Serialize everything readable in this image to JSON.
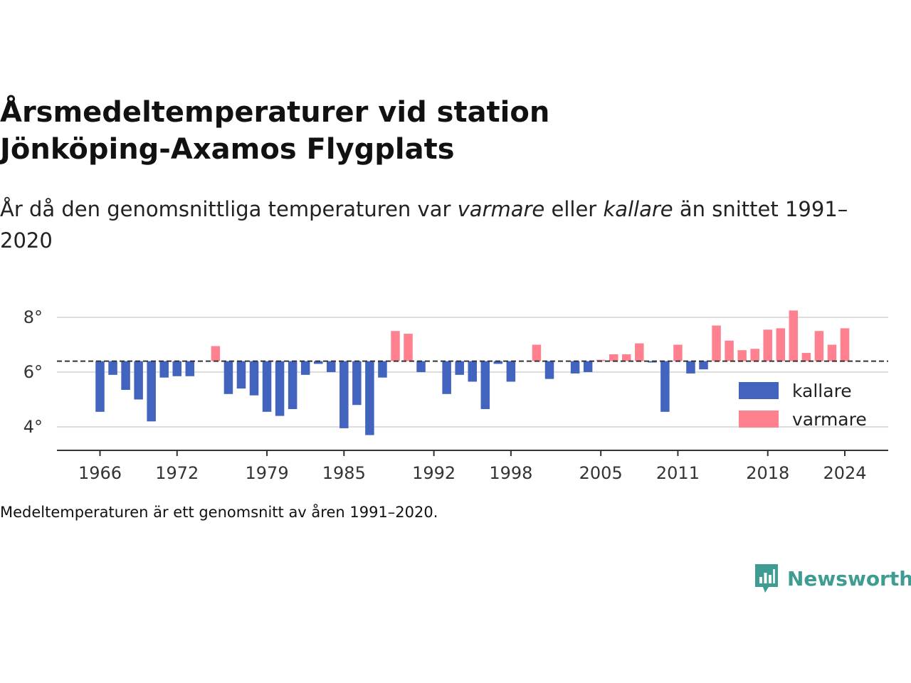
{
  "header": {
    "title_line1": "Årsmedeltemperaturer vid station",
    "title_line2": "Jönköping-Axamos Flygplats",
    "subtitle_pre": "År då den genomsnittliga temperaturen var ",
    "subtitle_warm": "varmare",
    "subtitle_mid": " eller ",
    "subtitle_cold": "kallare",
    "subtitle_post": " än snittet 1991–2020"
  },
  "footnote": "Medeltemperaturen är ett genomsnitt av åren 1991–2020.",
  "brand": {
    "name": "Newsworthy",
    "color": "#3e9c93"
  },
  "colors": {
    "cold": "#4264be",
    "warm": "#ff808f",
    "grid": "#dddddd",
    "axis": "#333333"
  },
  "chart_data": {
    "type": "bar",
    "baseline": 6.4,
    "ylim": [
      3.2,
      8.5
    ],
    "yticks": [
      {
        "value": 4,
        "label": "4°"
      },
      {
        "value": 6,
        "label": "6°"
      },
      {
        "value": 8,
        "label": "8°"
      }
    ],
    "xlim": [
      1965,
      2027
    ],
    "xticks": [
      {
        "value": 1966,
        "label": "1966"
      },
      {
        "value": 1972,
        "label": "1972"
      },
      {
        "value": 1979,
        "label": "1979"
      },
      {
        "value": 1985,
        "label": "1985"
      },
      {
        "value": 1992,
        "label": "1992"
      },
      {
        "value": 1998,
        "label": "1998"
      },
      {
        "value": 2005,
        "label": "2005"
      },
      {
        "value": 2011,
        "label": "2011"
      },
      {
        "value": 2018,
        "label": "2018"
      },
      {
        "value": 2024,
        "label": "2024"
      }
    ],
    "legend": {
      "position": "bottom-right",
      "items": [
        {
          "key": "cold",
          "label": "kallare"
        },
        {
          "key": "warm",
          "label": "varmare"
        }
      ]
    },
    "years": [
      1966,
      1967,
      1968,
      1969,
      1970,
      1971,
      1972,
      1973,
      1975,
      1976,
      1977,
      1978,
      1979,
      1980,
      1981,
      1982,
      1983,
      1984,
      1985,
      1986,
      1987,
      1988,
      1989,
      1990,
      1991,
      1993,
      1994,
      1995,
      1996,
      1997,
      1998,
      2000,
      2001,
      2003,
      2004,
      2005,
      2006,
      2007,
      2008,
      2009,
      2010,
      2011,
      2012,
      2013,
      2014,
      2015,
      2016,
      2017,
      2018,
      2019,
      2020,
      2021,
      2022,
      2023,
      2024
    ],
    "values": [
      4.55,
      5.9,
      5.35,
      5.0,
      4.2,
      5.8,
      5.85,
      5.85,
      6.95,
      5.2,
      5.4,
      5.15,
      4.55,
      4.4,
      4.65,
      5.9,
      6.3,
      6.0,
      3.95,
      4.8,
      3.7,
      5.8,
      7.5,
      7.4,
      6.0,
      5.2,
      5.9,
      5.65,
      4.65,
      6.3,
      5.65,
      7.0,
      5.75,
      5.95,
      6.0,
      6.45,
      6.65,
      6.65,
      7.05,
      6.35,
      4.55,
      7.0,
      5.95,
      6.1,
      7.7,
      7.15,
      6.8,
      6.85,
      7.55,
      7.6,
      8.25,
      6.7,
      7.5,
      7.0,
      7.6
    ]
  }
}
